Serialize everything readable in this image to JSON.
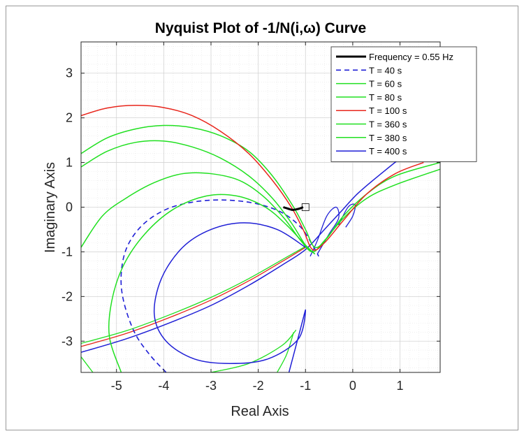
{
  "chart_data": {
    "type": "line",
    "title": "Nyquist Plot of -1/N(i,ω) Curve",
    "xlabel": "Real Axis",
    "ylabel": "Imaginary Axis",
    "xlim": [
      -5.75,
      1.85
    ],
    "ylim": [
      -3.7,
      3.7
    ],
    "xticks": [
      -5,
      -4,
      -3,
      -2,
      -1,
      0,
      1
    ],
    "yticks": [
      -3,
      -2,
      -1,
      0,
      1,
      2,
      3
    ],
    "grid": "major and minor",
    "legend_position": "top-right",
    "background": "#ffffff",
    "series": [
      {
        "name": "Frequency = 0.55 Hz",
        "color": "#000000",
        "style": "solid",
        "width": 3,
        "points": [
          [
            -1.47,
            0.0
          ],
          [
            -1.38,
            -0.03
          ],
          [
            -1.28,
            -0.06
          ],
          [
            -1.2,
            -0.05
          ],
          [
            -1.12,
            -0.03
          ],
          [
            -1.05,
            0.0
          ]
        ]
      },
      {
        "name": "T = 40 s",
        "color": "#1f1fd6",
        "style": "dashed",
        "width": 1.6,
        "points": [
          [
            -3.95,
            -3.7
          ],
          [
            -4.3,
            -3.3
          ],
          [
            -4.62,
            -2.8
          ],
          [
            -4.85,
            -2.1
          ],
          [
            -4.9,
            -1.5
          ],
          [
            -4.78,
            -0.9
          ],
          [
            -4.45,
            -0.4
          ],
          [
            -3.95,
            -0.05
          ],
          [
            -3.35,
            0.12
          ],
          [
            -2.7,
            0.16
          ],
          [
            -2.05,
            0.08
          ],
          [
            -1.5,
            -0.12
          ],
          [
            -1.1,
            -0.45
          ],
          [
            -0.85,
            -0.85
          ],
          [
            -0.72,
            -1.1
          ]
        ]
      },
      {
        "name": "T = 60 s",
        "color": "#20e020",
        "style": "solid",
        "width": 1.5,
        "points": [
          [
            -5.75,
            1.2
          ],
          [
            -5.2,
            1.55
          ],
          [
            -4.6,
            1.75
          ],
          [
            -4.0,
            1.83
          ],
          [
            -3.4,
            1.78
          ],
          [
            -2.8,
            1.6
          ],
          [
            -2.2,
            1.25
          ],
          [
            -1.7,
            0.7
          ],
          [
            -1.25,
            0.0
          ],
          [
            -1.0,
            -0.5
          ],
          [
            -0.8,
            -0.9
          ],
          [
            -0.55,
            -0.7
          ],
          [
            -0.2,
            -0.2
          ],
          [
            0.3,
            0.3
          ],
          [
            0.9,
            0.7
          ],
          [
            1.85,
            1.0
          ]
        ]
      },
      {
        "name": "T = 80 s",
        "color": "#20e020",
        "style": "solid",
        "width": 1.5,
        "points": [
          [
            -5.75,
            -0.9
          ],
          [
            -5.3,
            -0.2
          ],
          [
            -4.8,
            0.2
          ],
          [
            -4.2,
            0.55
          ],
          [
            -3.6,
            0.75
          ],
          [
            -3.0,
            0.75
          ],
          [
            -2.4,
            0.6
          ],
          [
            -1.9,
            0.25
          ],
          [
            -1.45,
            -0.25
          ],
          [
            -1.1,
            -0.75
          ],
          [
            -0.85,
            -1.0
          ],
          [
            -0.6,
            -0.75
          ],
          [
            -0.2,
            -0.25
          ],
          [
            0.3,
            0.2
          ],
          [
            0.9,
            0.5
          ],
          [
            1.85,
            0.85
          ]
        ]
      },
      {
        "name": "T = 100 s",
        "color": "#e8261c",
        "style": "solid",
        "width": 1.5,
        "points": [
          [
            -5.75,
            2.05
          ],
          [
            -5.2,
            2.22
          ],
          [
            -4.6,
            2.28
          ],
          [
            -4.0,
            2.23
          ],
          [
            -3.4,
            2.05
          ],
          [
            -2.8,
            1.7
          ],
          [
            -2.2,
            1.2
          ],
          [
            -1.7,
            0.6
          ],
          [
            -1.3,
            0.0
          ],
          [
            -1.05,
            -0.5
          ],
          [
            -0.85,
            -0.95
          ],
          [
            -0.6,
            -0.8
          ],
          [
            -0.2,
            -0.3
          ],
          [
            0.3,
            0.3
          ],
          [
            0.9,
            0.75
          ],
          [
            1.5,
            1.0
          ]
        ]
      },
      {
        "name": "T = 360 s",
        "color": "#20e020",
        "style": "solid",
        "width": 1.5,
        "points": [
          [
            -5.75,
            0.9
          ],
          [
            -5.2,
            1.25
          ],
          [
            -4.6,
            1.45
          ],
          [
            -4.0,
            1.48
          ],
          [
            -3.4,
            1.35
          ],
          [
            -2.8,
            1.1
          ],
          [
            -2.2,
            0.7
          ],
          [
            -1.7,
            0.2
          ],
          [
            -1.3,
            -0.35
          ],
          [
            -1.0,
            -0.85
          ],
          [
            -0.8,
            -1.05
          ]
        ]
      },
      {
        "name": "T = 380 s",
        "color": "#20e020",
        "style": "solid",
        "width": 1.5,
        "points": [
          [
            -4.9,
            -3.7
          ],
          [
            -5.15,
            -2.9
          ],
          [
            -5.1,
            -2.1
          ],
          [
            -4.85,
            -1.3
          ],
          [
            -4.4,
            -0.6
          ],
          [
            -3.8,
            -0.05
          ],
          [
            -3.1,
            0.25
          ],
          [
            -2.45,
            0.25
          ],
          [
            -1.85,
            0.0
          ],
          [
            -1.4,
            -0.4
          ],
          [
            -1.0,
            -0.85
          ],
          [
            -0.8,
            -1.05
          ]
        ]
      },
      {
        "name": "T = 400 s",
        "color": "#1f1fd6",
        "style": "solid",
        "width": 1.5,
        "points": [
          [
            -1.0,
            -0.9
          ],
          [
            -1.6,
            -0.5
          ],
          [
            -2.3,
            -0.35
          ],
          [
            -3.0,
            -0.5
          ],
          [
            -3.6,
            -0.9
          ],
          [
            -4.05,
            -1.6
          ],
          [
            -4.2,
            -2.4
          ],
          [
            -3.95,
            -3.0
          ],
          [
            -3.35,
            -3.4
          ],
          [
            -2.6,
            -3.5
          ],
          [
            -1.8,
            -3.4
          ],
          [
            -1.15,
            -2.95
          ],
          [
            -1.0,
            -2.3
          ],
          [
            -1.15,
            -2.9
          ],
          [
            -1.35,
            -3.7
          ]
        ]
      }
    ],
    "extra_lines": [
      {
        "color": "#1f1fd6",
        "width": 1.5,
        "points": [
          [
            -5.75,
            -3.25
          ],
          [
            -4.8,
            -2.95
          ],
          [
            -3.9,
            -2.6
          ],
          [
            -3.0,
            -2.2
          ],
          [
            -2.2,
            -1.75
          ],
          [
            -1.5,
            -1.3
          ],
          [
            -1.0,
            -0.95
          ],
          [
            -0.6,
            -0.5
          ],
          [
            -0.25,
            -0.1
          ],
          [
            0.1,
            0.3
          ],
          [
            0.6,
            0.75
          ],
          [
            1.2,
            1.25
          ],
          [
            1.85,
            1.7
          ]
        ]
      },
      {
        "color": "#e8261c",
        "width": 1.3,
        "points": [
          [
            -5.75,
            -3.12
          ],
          [
            -4.8,
            -2.83
          ],
          [
            -3.9,
            -2.48
          ],
          [
            -3.0,
            -2.08
          ],
          [
            -2.2,
            -1.65
          ],
          [
            -1.5,
            -1.22
          ],
          [
            -1.0,
            -0.9
          ]
        ]
      },
      {
        "color": "#20e020",
        "width": 1.3,
        "points": [
          [
            -5.75,
            -3.05
          ],
          [
            -4.8,
            -2.77
          ],
          [
            -3.9,
            -2.42
          ],
          [
            -3.0,
            -2.02
          ],
          [
            -2.2,
            -1.6
          ],
          [
            -1.5,
            -1.18
          ],
          [
            -1.0,
            -0.88
          ]
        ]
      },
      {
        "color": "#20e020",
        "width": 1.3,
        "points": [
          [
            -5.75,
            -3.35
          ],
          [
            -5.5,
            -3.7
          ]
        ]
      },
      {
        "color": "#20e020",
        "width": 1.3,
        "points": [
          [
            -3.0,
            -3.7
          ],
          [
            -2.2,
            -3.5
          ],
          [
            -1.5,
            -3.1
          ],
          [
            -1.2,
            -2.75
          ]
        ]
      },
      {
        "color": "#20e020",
        "width": 1.3,
        "points": [
          [
            -1.6,
            -3.7
          ],
          [
            -1.4,
            -3.3
          ],
          [
            -1.25,
            -2.8
          ]
        ]
      },
      {
        "color": "#1f1fd6",
        "width": 1.3,
        "points": [
          [
            -0.9,
            -1.1
          ],
          [
            -0.75,
            -0.75
          ],
          [
            -0.55,
            -0.2
          ],
          [
            -0.35,
            0.0
          ],
          [
            -0.3,
            -0.25
          ],
          [
            -0.5,
            -0.6
          ],
          [
            -0.75,
            -1.05
          ]
        ]
      },
      {
        "color": "#1f1fd6",
        "width": 1.3,
        "points": [
          [
            -0.3,
            -0.4
          ],
          [
            -0.1,
            0.0
          ],
          [
            0.05,
            0.05
          ],
          [
            0.0,
            -0.2
          ],
          [
            -0.15,
            -0.45
          ]
        ]
      }
    ],
    "marker_box": {
      "x": -1.0,
      "y": 0.0,
      "color": "#000000"
    }
  }
}
